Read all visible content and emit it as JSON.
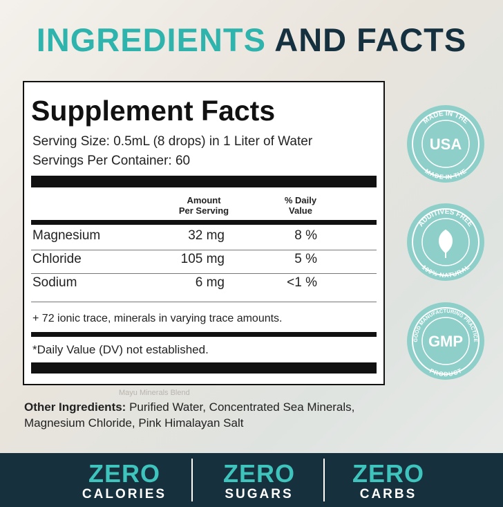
{
  "header": {
    "title_highlight": "INGREDIENTS",
    "title_rest": "AND FACTS"
  },
  "facts": {
    "title": "Supplement Facts",
    "serving_size": "Serving Size: 0.5mL (8 drops) in 1 Liter of Water",
    "servings_per_container": "Servings Per Container: 60",
    "columns": [
      "Amount\nPer Serving",
      "% Daily\nValue"
    ],
    "rows": [
      [
        "Magnesium",
        "32 mg",
        "8 %"
      ],
      [
        "Chloride",
        "105 mg",
        "5 %"
      ],
      [
        "Sodium",
        "6 mg",
        "<1 %"
      ]
    ],
    "note": "+ 72 ionic trace, minerals in varying trace amounts.",
    "footnote": "*Daily Value (DV) not established."
  },
  "background_text": "Mayu Minerals Blend",
  "other_ingredients": {
    "label": "Other Ingredients:",
    "text": " Purified Water, Concentrated Sea Minerals, Magnesium Chloride, Pink Himalayan Salt"
  },
  "badges": [
    {
      "top": "MADE IN THE",
      "center": "USA",
      "bottom": "MADE IN THE"
    },
    {
      "top": "ADDITIVES FREE",
      "bottom": "100% NATURAL"
    },
    {
      "top": "GOOD MANUFACTURING PRACTICE",
      "center": "GMP",
      "bottom": "PRODUCT"
    }
  ],
  "claims": [
    {
      "big": "ZERO",
      "small": "CALORIES"
    },
    {
      "big": "ZERO",
      "small": "SUGARS"
    },
    {
      "big": "ZERO",
      "small": "CARBS"
    }
  ]
}
